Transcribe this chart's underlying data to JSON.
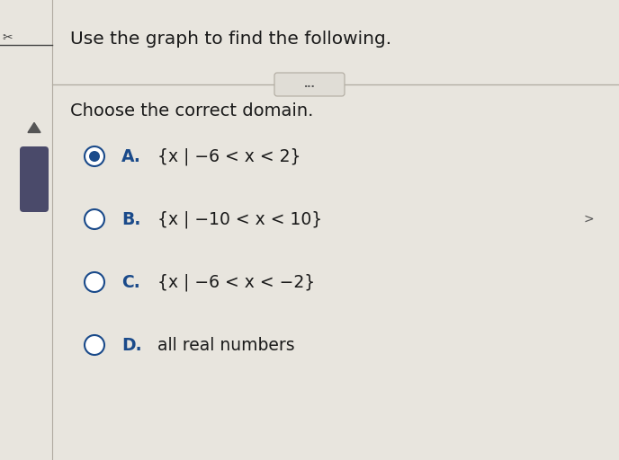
{
  "title": "Use the graph to find the following.",
  "subtitle": "Choose the correct domain.",
  "options": [
    {
      "label": "A.",
      "text": "{x | −6 < x < 2}",
      "selected": true
    },
    {
      "label": "B.",
      "text": "{x | −10 < x < 10}",
      "selected": false
    },
    {
      "label": "C.",
      "text": "{x | −6 < x < −2}",
      "selected": false
    },
    {
      "label": "D.",
      "text": "all real numbers",
      "selected": false
    }
  ],
  "bg_color": "#e8e5de",
  "text_color": "#1a1a1a",
  "label_color": "#1a4a8a",
  "title_fontsize": 14.5,
  "subtitle_fontsize": 14,
  "option_fontsize": 13.5,
  "selected_inner_color": "#1a4a8a",
  "radio_border_color": "#1a4a8a",
  "divider_color": "#b0aaa0",
  "dots_box_color": "#e0ddd6",
  "dots_box_border": "#b0aaa0",
  "sidebar_line_color": "#b0aaa0",
  "sidebar_triangle_color": "#555555",
  "sidebar_thumb_color": "#4a4a6a",
  "fig_bg": "#e8e5de",
  "left_bar_width": 0.08,
  "dots_text": "...",
  "right_arrow": ">"
}
